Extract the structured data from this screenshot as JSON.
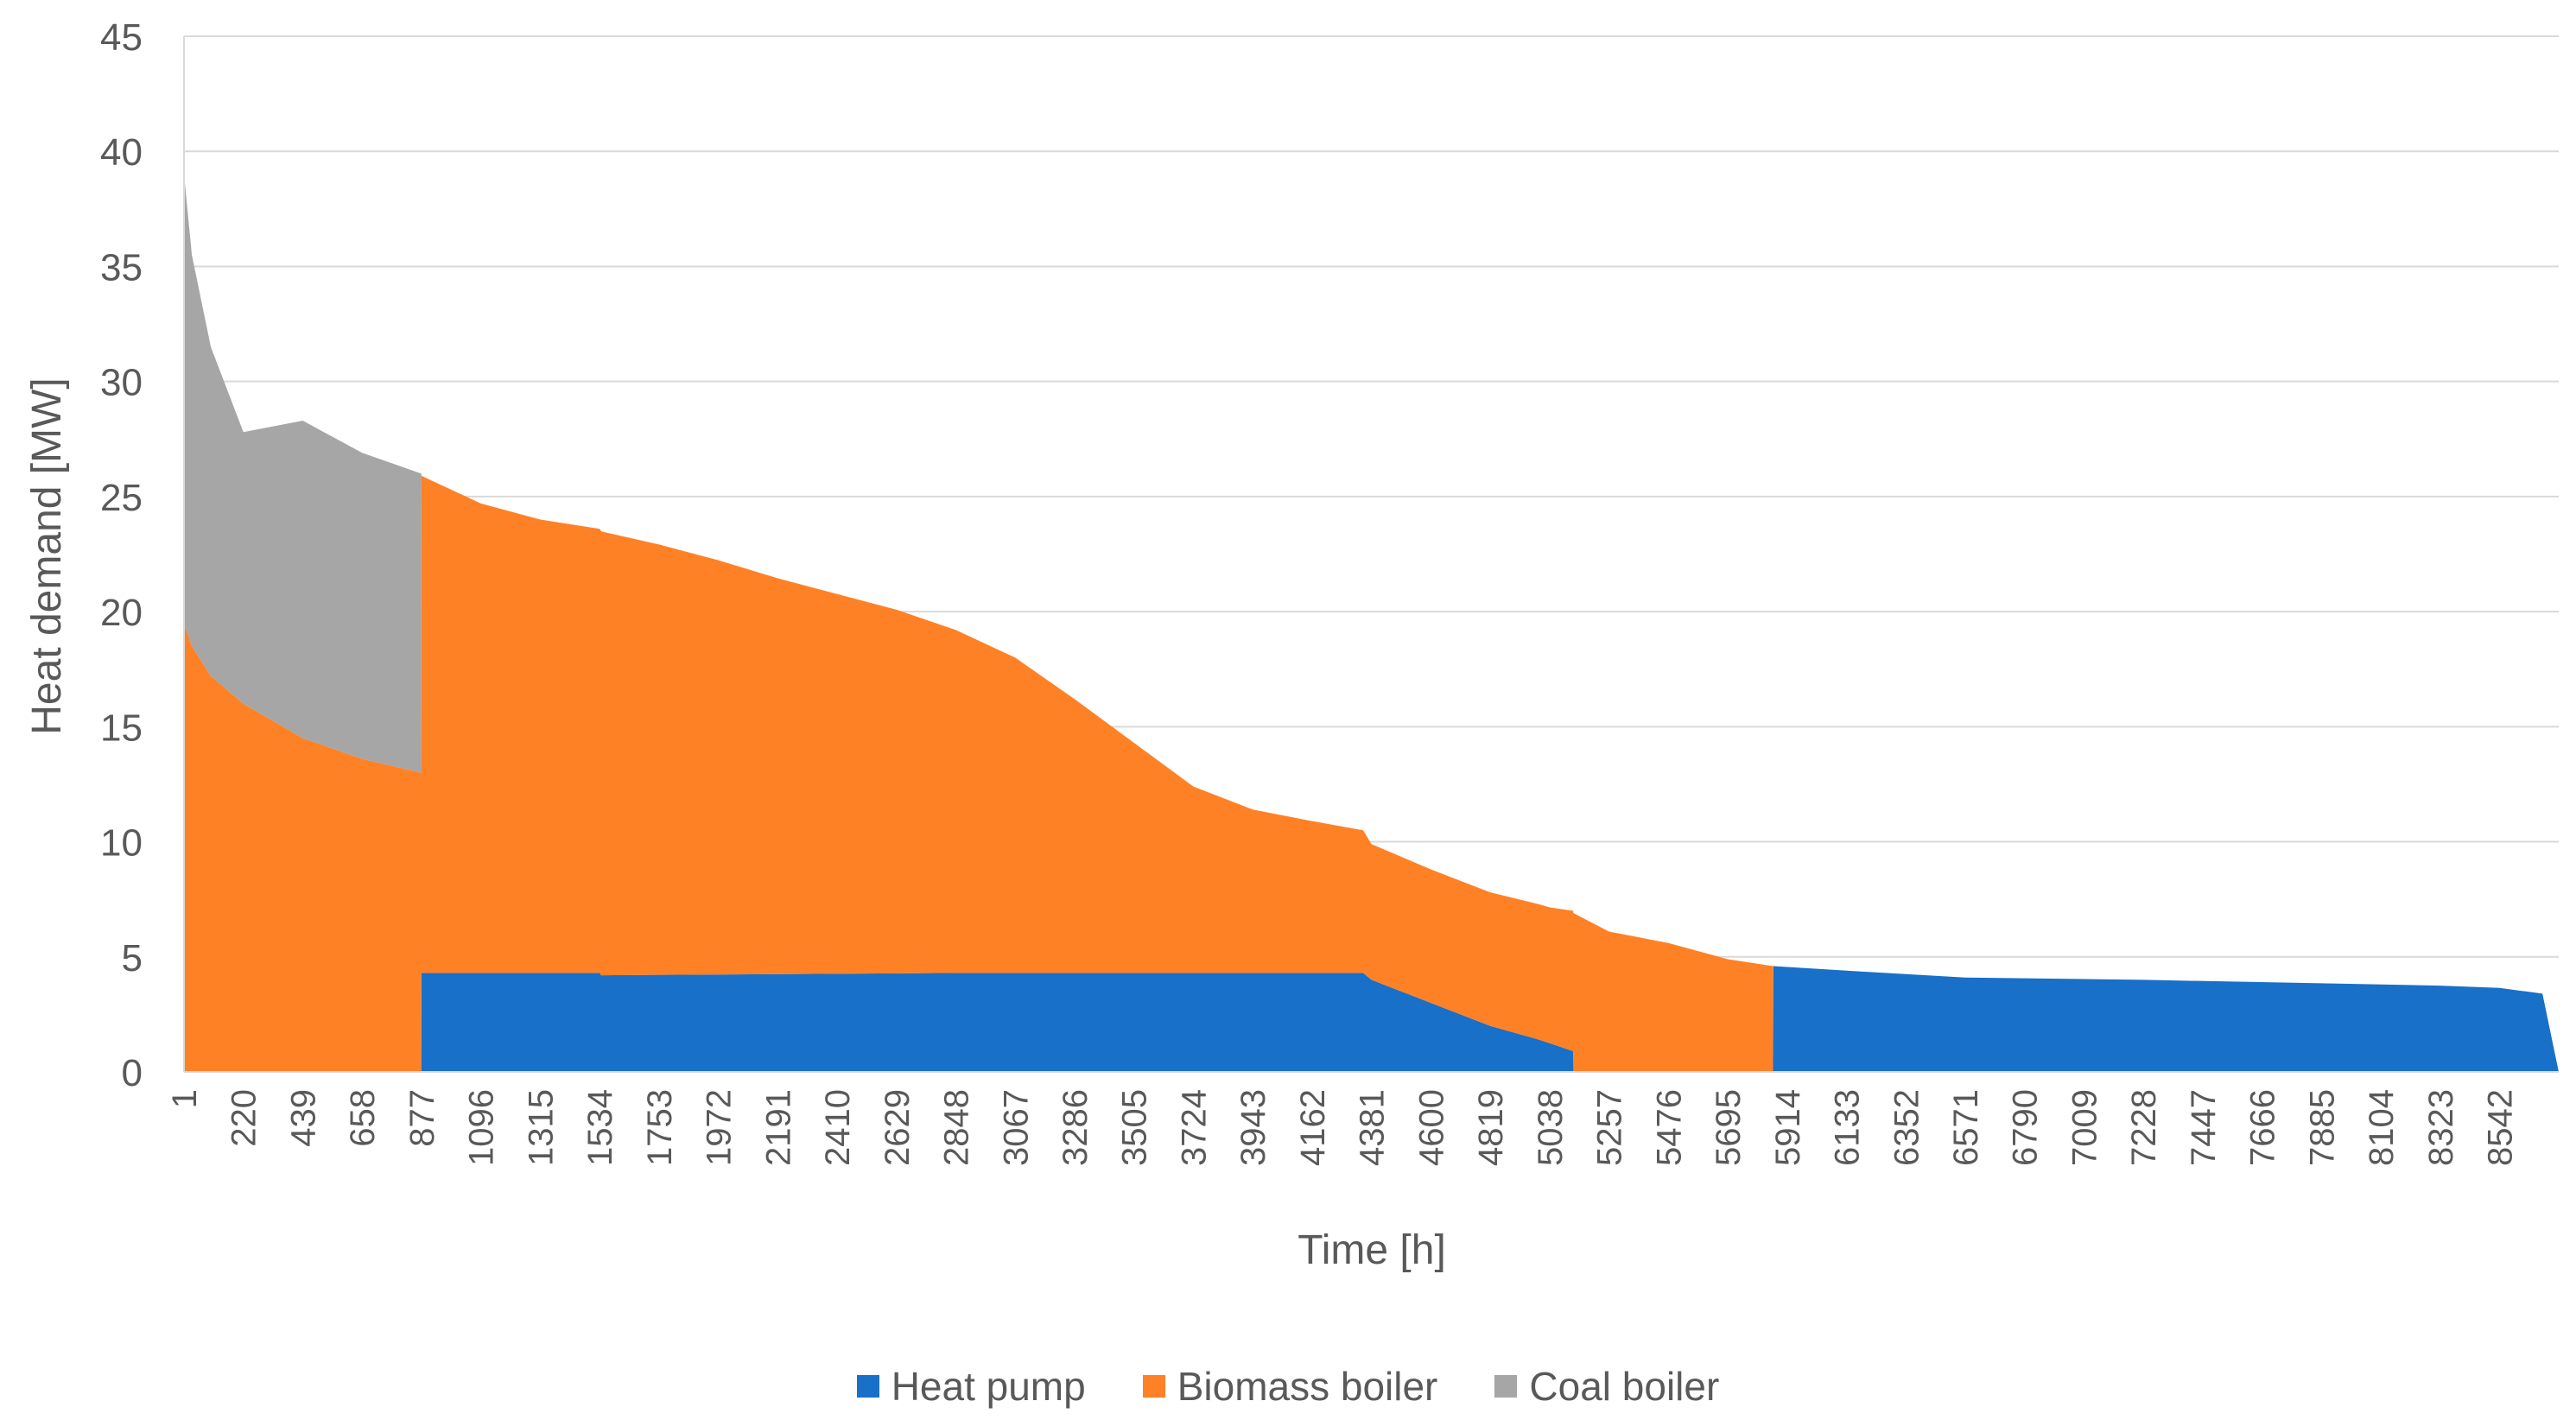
{
  "chart_data": {
    "type": "area",
    "title": "",
    "xlabel": "Time [h]",
    "ylabel": "Heat demand [MW]",
    "xlim": [
      1,
      8760
    ],
    "ylim": [
      0,
      45
    ],
    "yticks": [
      0,
      5,
      10,
      15,
      20,
      25,
      30,
      35,
      40,
      45
    ],
    "xtick_labels": [
      "1",
      "220",
      "439",
      "658",
      "877",
      "1096",
      "1315",
      "1534",
      "1753",
      "1972",
      "2191",
      "2410",
      "2629",
      "2848",
      "3067",
      "3286",
      "3505",
      "3724",
      "3943",
      "4162",
      "4381",
      "4600",
      "4819",
      "5038",
      "5257",
      "5476",
      "5695",
      "5914",
      "6133",
      "6352",
      "6571",
      "6790",
      "7009",
      "7228",
      "7447",
      "7666",
      "7885",
      "8104",
      "8323",
      "8542"
    ],
    "grid": true,
    "legend_position": "bottom",
    "stacking": "stacked",
    "series": [
      {
        "name": "Heat pump",
        "color": "#1870c8",
        "points": [
          [
            1,
            0
          ],
          [
            876,
            0
          ],
          [
            877,
            4.3
          ],
          [
            1534,
            4.3
          ],
          [
            1540,
            4.2
          ],
          [
            2848,
            4.3
          ],
          [
            4350,
            4.3
          ],
          [
            4381,
            4.0
          ],
          [
            4600,
            3.0
          ],
          [
            4819,
            2.0
          ],
          [
            5000,
            1.4
          ],
          [
            5125,
            0.9
          ],
          [
            5126,
            0
          ],
          [
            5862,
            0
          ],
          [
            5863,
            4.6
          ],
          [
            6133,
            4.4
          ],
          [
            6571,
            4.1
          ],
          [
            7228,
            4.0
          ],
          [
            7885,
            3.85
          ],
          [
            8323,
            3.75
          ],
          [
            8542,
            3.65
          ],
          [
            8700,
            3.4
          ],
          [
            8760,
            0
          ]
        ]
      },
      {
        "name": "Biomass boiler",
        "color": "#ff8126",
        "points": [
          [
            1,
            19.5
          ],
          [
            30,
            18.5
          ],
          [
            100,
            17.2
          ],
          [
            220,
            16.0
          ],
          [
            439,
            14.5
          ],
          [
            658,
            13.6
          ],
          [
            876,
            13.0
          ],
          [
            877,
            21.6
          ],
          [
            1096,
            20.4
          ],
          [
            1315,
            19.7
          ],
          [
            1534,
            19.3
          ],
          [
            1753,
            18.7
          ],
          [
            1972,
            18.0
          ],
          [
            2191,
            17.2
          ],
          [
            2410,
            16.5
          ],
          [
            2629,
            15.8
          ],
          [
            2848,
            14.9
          ],
          [
            3067,
            13.7
          ],
          [
            3286,
            11.9
          ],
          [
            3505,
            10.0
          ],
          [
            3724,
            8.1
          ],
          [
            3943,
            7.1
          ],
          [
            4162,
            6.6
          ],
          [
            4350,
            6.2
          ],
          [
            4381,
            5.9
          ],
          [
            4600,
            5.8
          ],
          [
            4819,
            5.8
          ],
          [
            5038,
            5.9
          ],
          [
            5125,
            6.1
          ],
          [
            5126,
            6.9
          ],
          [
            5257,
            6.1
          ],
          [
            5476,
            5.6
          ],
          [
            5695,
            4.9
          ],
          [
            5862,
            4.6
          ],
          [
            5863,
            0
          ],
          [
            8760,
            0
          ]
        ]
      },
      {
        "name": "Coal boiler",
        "color": "#a6a6a6",
        "points": [
          [
            1,
            19.5
          ],
          [
            30,
            17.0
          ],
          [
            100,
            14.3
          ],
          [
            220,
            11.8
          ],
          [
            439,
            13.8
          ],
          [
            658,
            13.3
          ],
          [
            876,
            13.0
          ],
          [
            877,
            0
          ],
          [
            8760,
            0
          ]
        ]
      }
    ]
  }
}
